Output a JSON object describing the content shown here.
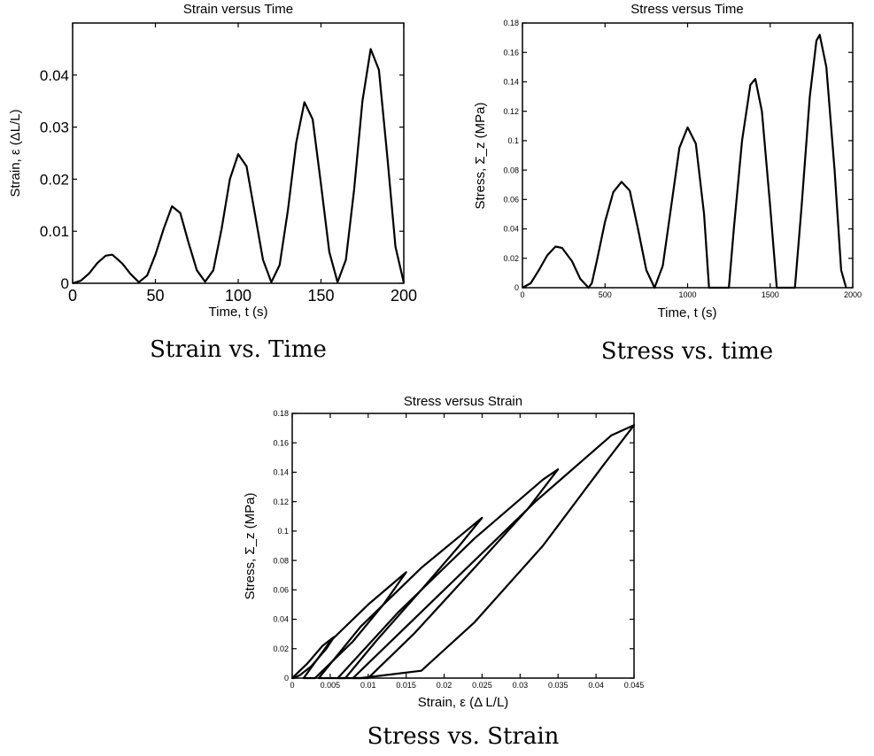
{
  "chart_data": [
    {
      "type": "line",
      "title": "Strain versus Time",
      "xlabel": "Time, t  (s)",
      "ylabel": "Strain, ε (ΔL/L)",
      "caption": "Strain vs. Time",
      "xlim": [
        0,
        200
      ],
      "ylim": [
        0,
        0.05
      ],
      "xticks": [
        "0",
        "50",
        "100",
        "150",
        "200"
      ],
      "yticks": [
        "0",
        "0.01",
        "0.02",
        "0.03",
        "0.04"
      ],
      "series": [
        {
          "x": [
            0,
            5,
            10,
            15,
            20,
            24,
            30,
            35,
            40,
            45,
            50,
            55,
            60,
            65,
            70,
            75,
            80,
            85,
            90,
            95,
            100,
            105,
            110,
            115,
            120,
            125,
            130,
            135,
            140,
            145,
            150,
            155,
            160,
            165,
            170,
            175,
            180,
            185,
            190,
            195,
            200
          ],
          "y": [
            0,
            0.0005,
            0.0019,
            0.0039,
            0.0053,
            0.0055,
            0.0038,
            0.0018,
            0.0002,
            0.0015,
            0.0055,
            0.0105,
            0.0148,
            0.0135,
            0.0078,
            0.0025,
            0.0003,
            0.0025,
            0.0105,
            0.02,
            0.0248,
            0.0225,
            0.0135,
            0.0045,
            0.0002,
            0.0035,
            0.014,
            0.027,
            0.0348,
            0.0315,
            0.019,
            0.006,
            0.0002,
            0.0045,
            0.018,
            0.035,
            0.045,
            0.041,
            0.0245,
            0.007,
            0.0001
          ]
        }
      ]
    },
    {
      "type": "line",
      "title": "Stress versus Time",
      "xlabel": "Time, t  (s)",
      "ylabel": "Stress, Σ_z  (MPa)",
      "caption": "Stress vs. time",
      "xlim": [
        0,
        2000
      ],
      "ylim": [
        0,
        0.18
      ],
      "xticks": [
        "0",
        "500",
        "1000",
        "1500",
        "2000"
      ],
      "yticks": [
        "0",
        "0.02",
        "0.04",
        "0.06",
        "0.08",
        "0.1",
        "0.12",
        "0.14",
        "0.16",
        "0.18"
      ],
      "series": [
        {
          "x": [
            0,
            50,
            100,
            150,
            200,
            240,
            300,
            350,
            400,
            420,
            450,
            500,
            550,
            600,
            650,
            700,
            750,
            800,
            850,
            900,
            950,
            1000,
            1050,
            1100,
            1130,
            1250,
            1280,
            1330,
            1380,
            1410,
            1450,
            1500,
            1540,
            1650,
            1690,
            1740,
            1780,
            1800,
            1840,
            1890,
            1930,
            1960
          ],
          "y": [
            0,
            0.003,
            0.012,
            0.022,
            0.028,
            0.027,
            0.018,
            0.006,
            0,
            0.003,
            0.018,
            0.045,
            0.065,
            0.072,
            0.066,
            0.04,
            0.012,
            0,
            0.015,
            0.055,
            0.095,
            0.109,
            0.098,
            0.05,
            0,
            0,
            0.04,
            0.1,
            0.138,
            0.142,
            0.12,
            0.055,
            0,
            0,
            0.055,
            0.13,
            0.168,
            0.172,
            0.15,
            0.08,
            0.012,
            0
          ]
        }
      ]
    },
    {
      "type": "line",
      "title": "Stress versus Strain",
      "xlabel": "Strain, ε (Δ L/L)",
      "ylabel": "Stress, Σ_z  (MPa)",
      "caption": "Stress vs. Strain",
      "xlim": [
        0,
        0.045
      ],
      "ylim": [
        0,
        0.18
      ],
      "xticks": [
        "0",
        "0.005",
        "0.01",
        "0.015",
        "0.02",
        "0.025",
        "0.03",
        "0.035",
        "0.04",
        "0.045"
      ],
      "yticks": [
        "0",
        "0.02",
        "0.04",
        "0.06",
        "0.08",
        "0.1",
        "0.12",
        "0.14",
        "0.16",
        "0.18"
      ],
      "series": [
        {
          "x": [
            0,
            0.002,
            0.004,
            0.0055,
            0.0045,
            0.0025,
            0.001,
            0.0002
          ],
          "y": [
            0,
            0.01,
            0.022,
            0.028,
            0.02,
            0.008,
            0.002,
            0
          ]
        },
        {
          "x": [
            0.0015,
            0.005,
            0.01,
            0.015,
            0.012,
            0.008,
            0.005,
            0.003
          ],
          "y": [
            0,
            0.025,
            0.05,
            0.072,
            0.05,
            0.025,
            0.01,
            0
          ]
        },
        {
          "x": [
            0.0035,
            0.009,
            0.017,
            0.025,
            0.022,
            0.017,
            0.011,
            0.007
          ],
          "y": [
            0,
            0.035,
            0.075,
            0.109,
            0.09,
            0.06,
            0.025,
            0
          ]
        },
        {
          "x": [
            0.006,
            0.014,
            0.024,
            0.033,
            0.035,
            0.031,
            0.024,
            0.016,
            0.01
          ],
          "y": [
            0,
            0.045,
            0.095,
            0.135,
            0.142,
            0.115,
            0.075,
            0.03,
            0
          ]
        },
        {
          "x": [
            0.008,
            0.02,
            0.032,
            0.042,
            0.045,
            0.041,
            0.033,
            0.024,
            0.017,
            0.009
          ],
          "y": [
            0,
            0.06,
            0.12,
            0.165,
            0.172,
            0.145,
            0.09,
            0.038,
            0.005,
            0
          ]
        }
      ]
    }
  ]
}
